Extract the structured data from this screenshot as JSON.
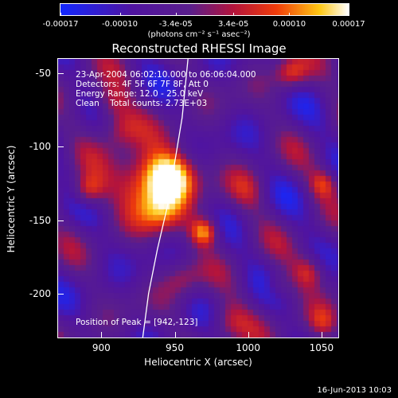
{
  "colorbar": {
    "ticks": [
      "-0.00017",
      "-0.00010",
      "-3.4e-05",
      "3.4e-05",
      "0.00010",
      "0.00017"
    ],
    "tick_values": [
      -0.00017,
      -0.0001,
      -3.4e-05,
      3.4e-05,
      0.0001,
      0.00017
    ],
    "range": [
      -0.00017,
      0.00017
    ],
    "units": "(photons cm⁻² s⁻¹ asec⁻²)"
  },
  "chart_data": {
    "type": "heatmap",
    "title": "Reconstructed RHESSI Image",
    "xlabel": "Heliocentric X (arcsec)",
    "ylabel": "Heliocentric Y (arcsec)",
    "xlim": [
      870,
      1062
    ],
    "ylim": [
      -230,
      -40
    ],
    "x_ticks": [
      900,
      950,
      1000,
      1050
    ],
    "y_ticks": [
      -50,
      -100,
      -150,
      -200
    ],
    "info_lines": [
      "23-Apr-2004 06:02:10.000 to 06:06:04.000",
      "Detectors: 4F 5F 6F 7F 8F, Att 0",
      "Energy Range: 12.0 - 25.0 keV",
      "Clean    Total counts: 2.73E+03"
    ],
    "peak_label": "Position of Peak = [942,-123]",
    "peak": [
      942,
      -123
    ],
    "sources": [
      {
        "x": 948,
        "y": -120,
        "sigma": 12,
        "amp": 1.0
      },
      {
        "x": 928,
        "y": -122,
        "sigma": 14,
        "amp": 0.75
      },
      {
        "x": 940,
        "y": -145,
        "sigma": 12,
        "amp": 0.6
      },
      {
        "x": 970,
        "y": -158,
        "sigma": 7,
        "amp": 0.85
      },
      {
        "x": 890,
        "y": -130,
        "sigma": 8,
        "amp": 0.65
      },
      {
        "x": 912,
        "y": -88,
        "sigma": 10,
        "amp": 0.5
      },
      {
        "x": 905,
        "y": -70,
        "sigma": 9,
        "amp": 0.45
      },
      {
        "x": 1030,
        "y": -50,
        "sigma": 8,
        "amp": 0.55
      },
      {
        "x": 1052,
        "y": -125,
        "sigma": 7,
        "amp": 0.5
      },
      {
        "x": 1042,
        "y": -185,
        "sigma": 8,
        "amp": 0.5
      },
      {
        "x": 1052,
        "y": -220,
        "sigma": 8,
        "amp": 0.45
      },
      {
        "x": 985,
        "y": -220,
        "sigma": 10,
        "amp": 0.45
      },
      {
        "x": 1000,
        "y": -130,
        "sigma": 10,
        "amp": 0.3
      },
      {
        "x": 955,
        "y": -190,
        "sigma": 9,
        "amp": 0.35
      },
      {
        "x": 1020,
        "y": -195,
        "sigma": 7,
        "amp": 0.3
      }
    ],
    "limb_curve": [
      [
        928,
        -230
      ],
      [
        932,
        -200
      ],
      [
        938,
        -170
      ],
      [
        945,
        -140
      ],
      [
        950,
        -110
      ],
      [
        955,
        -80
      ],
      [
        959,
        -40
      ]
    ]
  },
  "timestamp": "16-Jun-2013 10:03"
}
